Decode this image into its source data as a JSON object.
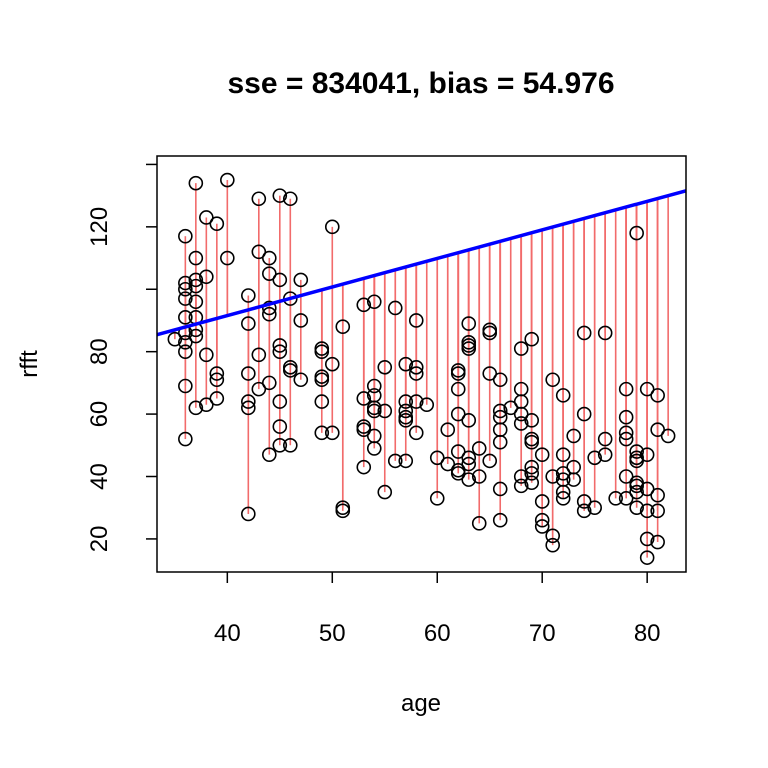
{
  "chart_data": {
    "type": "scatter",
    "title": "sse = 834041, bias = 54.976",
    "xlabel": "age",
    "ylabel": "rfft",
    "xlim": [
      33.3,
      83.7
    ],
    "ylim": [
      9.4,
      142.7
    ],
    "xticks": [
      40,
      50,
      60,
      70,
      80
    ],
    "xtick_labels": [
      "40",
      "50",
      "60",
      "70",
      "80"
    ],
    "yticks": [
      20,
      40,
      60,
      80,
      100,
      120,
      140
    ],
    "ytick_labels": [
      "20",
      "40",
      "60",
      "80",
      "",
      "120",
      ""
    ],
    "grid": false,
    "line": {
      "intercept": 54.976,
      "slope": 0.915,
      "color": "#0000ff"
    },
    "point_color": "#000000",
    "residual_color": "#f26b6b",
    "points": [
      [
        35,
        84
      ],
      [
        36,
        117
      ],
      [
        36,
        102
      ],
      [
        36,
        100
      ],
      [
        36,
        97
      ],
      [
        36,
        91
      ],
      [
        36,
        86
      ],
      [
        36,
        83
      ],
      [
        36,
        80
      ],
      [
        36,
        69
      ],
      [
        36,
        52
      ],
      [
        37,
        134
      ],
      [
        37,
        110
      ],
      [
        37,
        103
      ],
      [
        37,
        101
      ],
      [
        37,
        96
      ],
      [
        37,
        91
      ],
      [
        37,
        87
      ],
      [
        37,
        85
      ],
      [
        37,
        62
      ],
      [
        38,
        123
      ],
      [
        38,
        104
      ],
      [
        38,
        79
      ],
      [
        38,
        63
      ],
      [
        39,
        121
      ],
      [
        39,
        73
      ],
      [
        39,
        71
      ],
      [
        39,
        65
      ],
      [
        40,
        135
      ],
      [
        40,
        110
      ],
      [
        42,
        98
      ],
      [
        42,
        89
      ],
      [
        42,
        73
      ],
      [
        42,
        64
      ],
      [
        42,
        62
      ],
      [
        42,
        28
      ],
      [
        43,
        129
      ],
      [
        43,
        112
      ],
      [
        43,
        79
      ],
      [
        43,
        68
      ],
      [
        44,
        110
      ],
      [
        44,
        105
      ],
      [
        44,
        94
      ],
      [
        44,
        92
      ],
      [
        44,
        70
      ],
      [
        44,
        47
      ],
      [
        45,
        130
      ],
      [
        45,
        103
      ],
      [
        45,
        82
      ],
      [
        45,
        80
      ],
      [
        45,
        64
      ],
      [
        45,
        56
      ],
      [
        45,
        50
      ],
      [
        46,
        129
      ],
      [
        46,
        97
      ],
      [
        46,
        75
      ],
      [
        46,
        74
      ],
      [
        46,
        50
      ],
      [
        47,
        103
      ],
      [
        47,
        90
      ],
      [
        47,
        71
      ],
      [
        49,
        81
      ],
      [
        49,
        80
      ],
      [
        49,
        72
      ],
      [
        49,
        71
      ],
      [
        49,
        64
      ],
      [
        49,
        54
      ],
      [
        50,
        120
      ],
      [
        50,
        76
      ],
      [
        50,
        54
      ],
      [
        51,
        88
      ],
      [
        51,
        30
      ],
      [
        51,
        29
      ],
      [
        53,
        95
      ],
      [
        53,
        65
      ],
      [
        53,
        56
      ],
      [
        53,
        55
      ],
      [
        53,
        43
      ],
      [
        54,
        96
      ],
      [
        54,
        69
      ],
      [
        54,
        66
      ],
      [
        54,
        62
      ],
      [
        54,
        61
      ],
      [
        54,
        53
      ],
      [
        54,
        49
      ],
      [
        55,
        75
      ],
      [
        55,
        61
      ],
      [
        55,
        35
      ],
      [
        56,
        94
      ],
      [
        56,
        45
      ],
      [
        57,
        76
      ],
      [
        57,
        64
      ],
      [
        57,
        61
      ],
      [
        57,
        59
      ],
      [
        57,
        58
      ],
      [
        57,
        45
      ],
      [
        58,
        90
      ],
      [
        58,
        75
      ],
      [
        58,
        73
      ],
      [
        58,
        64
      ],
      [
        58,
        54
      ],
      [
        59,
        63
      ],
      [
        60,
        46
      ],
      [
        60,
        33
      ],
      [
        61,
        55
      ],
      [
        61,
        44
      ],
      [
        62,
        74
      ],
      [
        62,
        73
      ],
      [
        62,
        68
      ],
      [
        62,
        60
      ],
      [
        62,
        48
      ],
      [
        62,
        42
      ],
      [
        62,
        41
      ],
      [
        63,
        89
      ],
      [
        63,
        83
      ],
      [
        63,
        82
      ],
      [
        63,
        81
      ],
      [
        63,
        58
      ],
      [
        63,
        46
      ],
      [
        63,
        44
      ],
      [
        63,
        39
      ],
      [
        64,
        49
      ],
      [
        64,
        40
      ],
      [
        64,
        25
      ],
      [
        65,
        87
      ],
      [
        65,
        86
      ],
      [
        65,
        73
      ],
      [
        65,
        45
      ],
      [
        66,
        71
      ],
      [
        66,
        61
      ],
      [
        66,
        59
      ],
      [
        66,
        55
      ],
      [
        66,
        51
      ],
      [
        66,
        36
      ],
      [
        66,
        26
      ],
      [
        67,
        62
      ],
      [
        68,
        81
      ],
      [
        68,
        68
      ],
      [
        68,
        64
      ],
      [
        68,
        60
      ],
      [
        68,
        57
      ],
      [
        68,
        40
      ],
      [
        68,
        37
      ],
      [
        69,
        84
      ],
      [
        69,
        58
      ],
      [
        69,
        52
      ],
      [
        69,
        51
      ],
      [
        69,
        43
      ],
      [
        69,
        41
      ],
      [
        69,
        38
      ],
      [
        70,
        47
      ],
      [
        70,
        32
      ],
      [
        70,
        26
      ],
      [
        70,
        24
      ],
      [
        71,
        71
      ],
      [
        71,
        40
      ],
      [
        71,
        21
      ],
      [
        71,
        18
      ],
      [
        72,
        66
      ],
      [
        72,
        47
      ],
      [
        72,
        41
      ],
      [
        72,
        39
      ],
      [
        72,
        35
      ],
      [
        72,
        33
      ],
      [
        73,
        53
      ],
      [
        73,
        43
      ],
      [
        73,
        39
      ],
      [
        74,
        86
      ],
      [
        74,
        60
      ],
      [
        74,
        32
      ],
      [
        74,
        29
      ],
      [
        75,
        46
      ],
      [
        75,
        30
      ],
      [
        76,
        86
      ],
      [
        76,
        52
      ],
      [
        76,
        47
      ],
      [
        77,
        33
      ],
      [
        78,
        68
      ],
      [
        78,
        59
      ],
      [
        78,
        54
      ],
      [
        78,
        52
      ],
      [
        78,
        40
      ],
      [
        78,
        33
      ],
      [
        79,
        118
      ],
      [
        79,
        48
      ],
      [
        79,
        46
      ],
      [
        79,
        45
      ],
      [
        79,
        38
      ],
      [
        79,
        37
      ],
      [
        79,
        35
      ],
      [
        79,
        30
      ],
      [
        80,
        68
      ],
      [
        80,
        47
      ],
      [
        80,
        36
      ],
      [
        80,
        29
      ],
      [
        80,
        20
      ],
      [
        80,
        14
      ],
      [
        81,
        66
      ],
      [
        81,
        55
      ],
      [
        81,
        34
      ],
      [
        81,
        29
      ],
      [
        81,
        19
      ],
      [
        82,
        53
      ]
    ]
  }
}
